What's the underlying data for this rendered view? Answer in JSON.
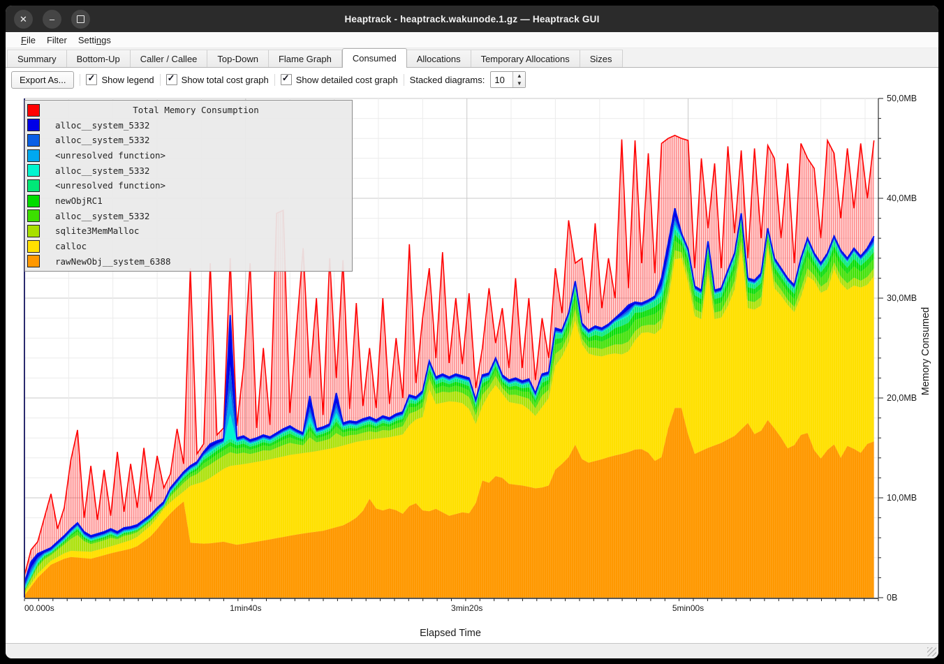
{
  "window": {
    "title": "Heaptrack - heaptrack.wakunode.1.gz — Heaptrack GUI",
    "controls": [
      {
        "name": "close",
        "glyph": "×"
      },
      {
        "name": "minimize",
        "glyph": "–"
      },
      {
        "name": "maximize",
        "glyph": "square"
      }
    ]
  },
  "menu": {
    "items": [
      {
        "label": "File",
        "accel": 0
      },
      {
        "label": "Filter",
        "accel": -1
      },
      {
        "label": "Settings",
        "accel": 5
      }
    ]
  },
  "tabs": {
    "items": [
      {
        "label": "Summary",
        "active": false
      },
      {
        "label": "Bottom-Up",
        "active": false
      },
      {
        "label": "Caller / Callee",
        "active": false
      },
      {
        "label": "Top-Down",
        "active": false
      },
      {
        "label": "Flame Graph",
        "active": false
      },
      {
        "label": "Consumed",
        "active": true
      },
      {
        "label": "Allocations",
        "active": false
      },
      {
        "label": "Temporary Allocations",
        "active": false
      },
      {
        "label": "Sizes",
        "active": false
      }
    ]
  },
  "toolbar": {
    "export_label": "Export As...",
    "checkboxes": [
      {
        "label": "Show legend",
        "checked": true
      },
      {
        "label": "Show total cost graph",
        "checked": true
      },
      {
        "label": "Show detailed cost graph",
        "checked": true
      }
    ],
    "stacked_label": "Stacked diagrams:",
    "stacked_value": "10"
  },
  "chart_data": {
    "type": "area",
    "xlabel": "Elapsed Time",
    "ylabel": "Memory Consumed",
    "xlim_s": [
      0,
      386
    ],
    "ylim_mb": [
      0,
      50
    ],
    "x_ticks": [
      {
        "t": 0,
        "label": "00.000s"
      },
      {
        "t": 100,
        "label": "1min40s"
      },
      {
        "t": 200,
        "label": "3min20s"
      },
      {
        "t": 300,
        "label": "5min00s"
      }
    ],
    "y_ticks": [
      {
        "v": 0,
        "label": "0B"
      },
      {
        "v": 10,
        "label": "10,0MB"
      },
      {
        "v": 20,
        "label": "20,0MB"
      },
      {
        "v": 30,
        "label": "30,0MB"
      },
      {
        "v": 40,
        "label": "40,0MB"
      },
      {
        "v": 50,
        "label": "50,0MB"
      }
    ],
    "grid": {
      "minor_x_s": 20,
      "major_x_s": 100,
      "minor_y_mb": 2,
      "major_y_mb": 10,
      "visible": true
    },
    "legend_position": "top-left",
    "sample_step_s": 3,
    "total_label": "Total Memory Consumption",
    "total_color": "#FF0000",
    "total_mb": [
      2.2,
      4.8,
      5.6,
      8.0,
      10.4,
      6.9,
      9.0,
      13.8,
      16.8,
      8.0,
      13.2,
      7.8,
      12.8,
      8.2,
      14.6,
      8.6,
      13.4,
      9.0,
      15.0,
      9.6,
      14.2,
      11.0,
      12.4,
      16.9,
      13.4,
      33.0,
      14.4,
      15.4,
      33.5,
      16.3,
      17.0,
      34.0,
      17.2,
      23.0,
      33.5,
      17.0,
      25.0,
      17.3,
      38.5,
      38.8,
      18.5,
      27.0,
      35.0,
      22.0,
      30.0,
      18.3,
      34.0,
      22.0,
      33.8,
      18.9,
      29.5,
      19.2,
      25.0,
      19.0,
      30.0,
      19.4,
      26.0,
      20.0,
      35.4,
      21.5,
      28.0,
      33.0,
      24.0,
      34.6,
      23.5,
      30.0,
      23.4,
      30.5,
      21.0,
      25.0,
      31.0,
      25.5,
      29.0,
      23.0,
      32.0,
      23.0,
      30.0,
      21.8,
      28.0,
      24.0,
      33.0,
      28.5,
      37.8,
      33.5,
      34.0,
      28.5,
      37.5,
      29.0,
      34.0,
      30.0,
      45.9,
      31.0,
      45.8,
      33.5,
      44.5,
      32.5,
      45.5,
      46.0,
      46.3,
      46.0,
      45.8,
      33.0,
      44.0,
      37.0,
      43.5,
      33.0,
      45.2,
      36.5,
      44.8,
      34.0,
      45.0,
      36.0,
      45.3,
      44.0,
      36.0,
      43.5,
      33.5,
      45.5,
      44.0,
      43.0,
      36.0,
      45.8,
      44.5,
      38.0,
      45.0,
      39.0,
      45.5,
      40.0,
      45.8
    ],
    "solid_top_mb": [
      1.5,
      3.6,
      4.4,
      4.7,
      5.0,
      5.6,
      6.2,
      6.9,
      7.5,
      6.6,
      6.2,
      6.4,
      6.6,
      6.9,
      6.6,
      7.0,
      7.1,
      7.3,
      7.8,
      8.3,
      9.0,
      9.6,
      11.0,
      11.8,
      12.6,
      13.2,
      13.6,
      14.6,
      15.4,
      15.7,
      15.9,
      28.3,
      16.0,
      16.2,
      15.8,
      16.0,
      16.3,
      16.1,
      16.5,
      16.9,
      17.2,
      16.8,
      16.5,
      20.2,
      16.9,
      17.1,
      17.4,
      20.5,
      17.5,
      17.7,
      17.6,
      17.9,
      18.1,
      17.8,
      18.2,
      18.0,
      18.4,
      18.6,
      20.3,
      20.1,
      20.7,
      23.7,
      22.1,
      22.4,
      22.1,
      22.4,
      22.2,
      22.0,
      19.8,
      22.3,
      22.5,
      24.0,
      22.3,
      21.8,
      22.0,
      21.7,
      21.9,
      20.5,
      22.4,
      22.6,
      27.0,
      26.8,
      28.5,
      31.7,
      27.5,
      26.8,
      27.2,
      27.0,
      27.4,
      28.0,
      28.6,
      29.3,
      29.6,
      29.5,
      29.8,
      30.2,
      32.0,
      35.5,
      39.0,
      36.5,
      34.9,
      31.2,
      30.8,
      35.7,
      30.8,
      31.0,
      32.8,
      34.5,
      38.5,
      32.0,
      31.8,
      32.5,
      37.0,
      34.0,
      33.0,
      32.0,
      31.3,
      34.0,
      36.0,
      34.5,
      33.5,
      34.5,
      36.2,
      34.8,
      34.0,
      35.0,
      34.2,
      35.0,
      36.2
    ],
    "orange_top_keypoints": [
      [
        0,
        0.2
      ],
      [
        6,
        2.0
      ],
      [
        12,
        3.3
      ],
      [
        20,
        4.1
      ],
      [
        30,
        3.9
      ],
      [
        40,
        4.5
      ],
      [
        50,
        5.0
      ],
      [
        58,
        6.3
      ],
      [
        64,
        8.0
      ],
      [
        70,
        9.3
      ],
      [
        73,
        9.8
      ],
      [
        75,
        5.5
      ],
      [
        82,
        5.4
      ],
      [
        90,
        5.6
      ],
      [
        96,
        5.3
      ],
      [
        105,
        5.6
      ],
      [
        115,
        6.0
      ],
      [
        125,
        6.4
      ],
      [
        135,
        6.7
      ],
      [
        145,
        7.3
      ],
      [
        152,
        8.3
      ],
      [
        156,
        9.9
      ],
      [
        160,
        8.6
      ],
      [
        166,
        9.0
      ],
      [
        171,
        8.4
      ],
      [
        176,
        9.7
      ],
      [
        181,
        8.5
      ],
      [
        186,
        8.9
      ],
      [
        192,
        8.2
      ],
      [
        199,
        8.6
      ],
      [
        203,
        8.3
      ],
      [
        206,
        11.8
      ],
      [
        210,
        11.5
      ],
      [
        214,
        12.4
      ],
      [
        219,
        11.4
      ],
      [
        226,
        11.2
      ],
      [
        232,
        10.9
      ],
      [
        238,
        11.3
      ],
      [
        241,
        13.6
      ],
      [
        245,
        13.2
      ],
      [
        248,
        15.8
      ],
      [
        253,
        13.4
      ],
      [
        260,
        13.8
      ],
      [
        266,
        14.2
      ],
      [
        272,
        14.5
      ],
      [
        278,
        15.0
      ],
      [
        283,
        14.4
      ],
      [
        287,
        13.0
      ],
      [
        290,
        16.2
      ],
      [
        293,
        18.5
      ],
      [
        296,
        20.0
      ],
      [
        299,
        17.0
      ],
      [
        303,
        14.4
      ],
      [
        309,
        15.0
      ],
      [
        315,
        15.5
      ],
      [
        321,
        16.2
      ],
      [
        327,
        17.5
      ],
      [
        331,
        16.0
      ],
      [
        336,
        17.8
      ],
      [
        341,
        16.4
      ],
      [
        346,
        14.6
      ],
      [
        351,
        16.3
      ],
      [
        354,
        16.5
      ],
      [
        358,
        14.2
      ],
      [
        361,
        13.8
      ],
      [
        365,
        15.8
      ],
      [
        369,
        14.0
      ],
      [
        373,
        15.6
      ],
      [
        377,
        14.2
      ],
      [
        381,
        15.4
      ],
      [
        386,
        15.8
      ]
    ],
    "yellow_top_keypoints": [
      [
        0,
        0.4
      ],
      [
        6,
        2.4
      ],
      [
        12,
        3.7
      ],
      [
        20,
        4.7
      ],
      [
        30,
        4.6
      ],
      [
        40,
        5.2
      ],
      [
        50,
        5.9
      ],
      [
        58,
        7.4
      ],
      [
        64,
        9.2
      ],
      [
        70,
        10.3
      ],
      [
        73,
        10.8
      ],
      [
        75,
        11.2
      ],
      [
        82,
        11.7
      ],
      [
        90,
        12.9
      ],
      [
        93,
        13.2
      ],
      [
        100,
        13.4
      ],
      [
        110,
        13.8
      ],
      [
        120,
        14.3
      ],
      [
        130,
        14.6
      ],
      [
        140,
        15.0
      ],
      [
        150,
        15.6
      ],
      [
        158,
        15.9
      ],
      [
        166,
        16.1
      ],
      [
        172,
        16.4
      ],
      [
        175,
        17.7
      ],
      [
        180,
        18.1
      ],
      [
        183,
        20.9
      ],
      [
        186,
        19.4
      ],
      [
        193,
        19.7
      ],
      [
        200,
        19.4
      ],
      [
        204,
        17.4
      ],
      [
        208,
        19.8
      ],
      [
        213,
        21.3
      ],
      [
        219,
        19.6
      ],
      [
        226,
        19.3
      ],
      [
        231,
        18.2
      ],
      [
        237,
        20.0
      ],
      [
        241,
        24.3
      ],
      [
        245,
        24.0
      ],
      [
        248,
        28.6
      ],
      [
        253,
        24.6
      ],
      [
        260,
        24.1
      ],
      [
        266,
        24.5
      ],
      [
        272,
        24.3
      ],
      [
        278,
        26.5
      ],
      [
        283,
        26.6
      ],
      [
        287,
        26.2
      ],
      [
        290,
        28.6
      ],
      [
        293,
        32.2
      ],
      [
        295,
        35.6
      ],
      [
        298,
        33.2
      ],
      [
        300,
        31.6
      ],
      [
        303,
        28.2
      ],
      [
        307,
        27.8
      ],
      [
        309,
        32.4
      ],
      [
        312,
        27.9
      ],
      [
        316,
        28.1
      ],
      [
        319,
        29.8
      ],
      [
        322,
        31.4
      ],
      [
        324,
        35.0
      ],
      [
        327,
        29.0
      ],
      [
        331,
        28.8
      ],
      [
        334,
        29.5
      ],
      [
        336,
        35.1
      ],
      [
        339,
        31.0
      ],
      [
        343,
        30.0
      ],
      [
        346,
        29.0
      ],
      [
        349,
        28.4
      ],
      [
        352,
        31.0
      ],
      [
        355,
        32.8
      ],
      [
        358,
        31.2
      ],
      [
        361,
        30.2
      ],
      [
        364,
        31.2
      ],
      [
        366,
        32.9
      ],
      [
        369,
        31.5
      ],
      [
        373,
        30.6
      ],
      [
        376,
        31.6
      ],
      [
        379,
        30.8
      ],
      [
        382,
        31.6
      ],
      [
        386,
        32.8
      ]
    ],
    "sqlite_thickness_keypoints": [
      [
        0,
        0.2
      ],
      [
        10,
        1.0
      ],
      [
        25,
        1.7
      ],
      [
        50,
        1.5
      ],
      [
        75,
        1.3
      ],
      [
        100,
        1.4
      ],
      [
        130,
        1.5
      ],
      [
        160,
        1.3
      ],
      [
        183,
        1.5
      ],
      [
        200,
        1.4
      ],
      [
        230,
        1.3
      ],
      [
        250,
        1.1
      ],
      [
        270,
        1.0
      ],
      [
        290,
        0.9
      ],
      [
        320,
        0.9
      ],
      [
        350,
        0.8
      ],
      [
        386,
        0.8
      ]
    ],
    "greens_thickness_keypoints": [
      [
        0,
        0.2
      ],
      [
        10,
        0.5
      ],
      [
        25,
        0.8
      ],
      [
        50,
        0.9
      ],
      [
        75,
        1.0
      ],
      [
        100,
        1.5
      ],
      [
        130,
        1.5
      ],
      [
        160,
        1.6
      ],
      [
        183,
        1.8
      ],
      [
        200,
        1.7
      ],
      [
        215,
        2.0
      ],
      [
        230,
        1.8
      ],
      [
        250,
        2.2
      ],
      [
        264,
        2.4
      ],
      [
        281,
        2.6
      ],
      [
        294,
        2.1
      ],
      [
        303,
        2.4
      ],
      [
        320,
        2.5
      ],
      [
        336,
        1.7
      ],
      [
        345,
        2.7
      ],
      [
        360,
        2.5
      ],
      [
        375,
        2.5
      ],
      [
        386,
        2.1
      ]
    ],
    "stack_series_bottom_to_top": [
      {
        "label": "rawNewObj__system_6388",
        "color": "#FF9800"
      },
      {
        "label": "calloc",
        "color": "#FFE000"
      },
      {
        "label": "sqlite3MemMalloc",
        "color": "#A8E000"
      },
      {
        "label": "alloc__system_5332",
        "color": "#3CE000"
      },
      {
        "label": "newObjRC1",
        "color": "#00DC00"
      },
      {
        "label": "<unresolved function>",
        "color": "#00E878"
      },
      {
        "label": "alloc__system_5332",
        "color": "#00F5D0"
      },
      {
        "label": "<unresolved function>",
        "color": "#00A8F0"
      },
      {
        "label": "alloc__system_5332",
        "color": "#0A5FE6"
      },
      {
        "label": "alloc__system_5332",
        "color": "#0000E8"
      }
    ]
  }
}
